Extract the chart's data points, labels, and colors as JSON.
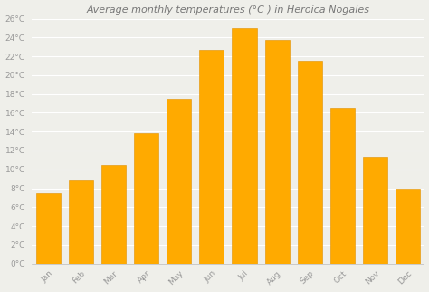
{
  "title": "Average monthly temperatures (°C ) in Heroica Nogales",
  "months": [
    "Jan",
    "Feb",
    "Mar",
    "Apr",
    "May",
    "Jun",
    "Jul",
    "Aug",
    "Sep",
    "Oct",
    "Nov",
    "Dec"
  ],
  "values": [
    7.5,
    8.8,
    10.5,
    13.8,
    17.5,
    22.7,
    25.0,
    23.7,
    21.5,
    16.5,
    11.3,
    8.0
  ],
  "bar_color": "#FFAA00",
  "bar_edge_color": "#E09000",
  "ylim": [
    0,
    26
  ],
  "yticks": [
    0,
    2,
    4,
    6,
    8,
    10,
    12,
    14,
    16,
    18,
    20,
    22,
    24,
    26
  ],
  "background_color": "#efefea",
  "grid_color": "#ffffff",
  "title_fontsize": 8,
  "tick_fontsize": 6.5,
  "tick_color": "#999999",
  "bar_width": 0.75
}
